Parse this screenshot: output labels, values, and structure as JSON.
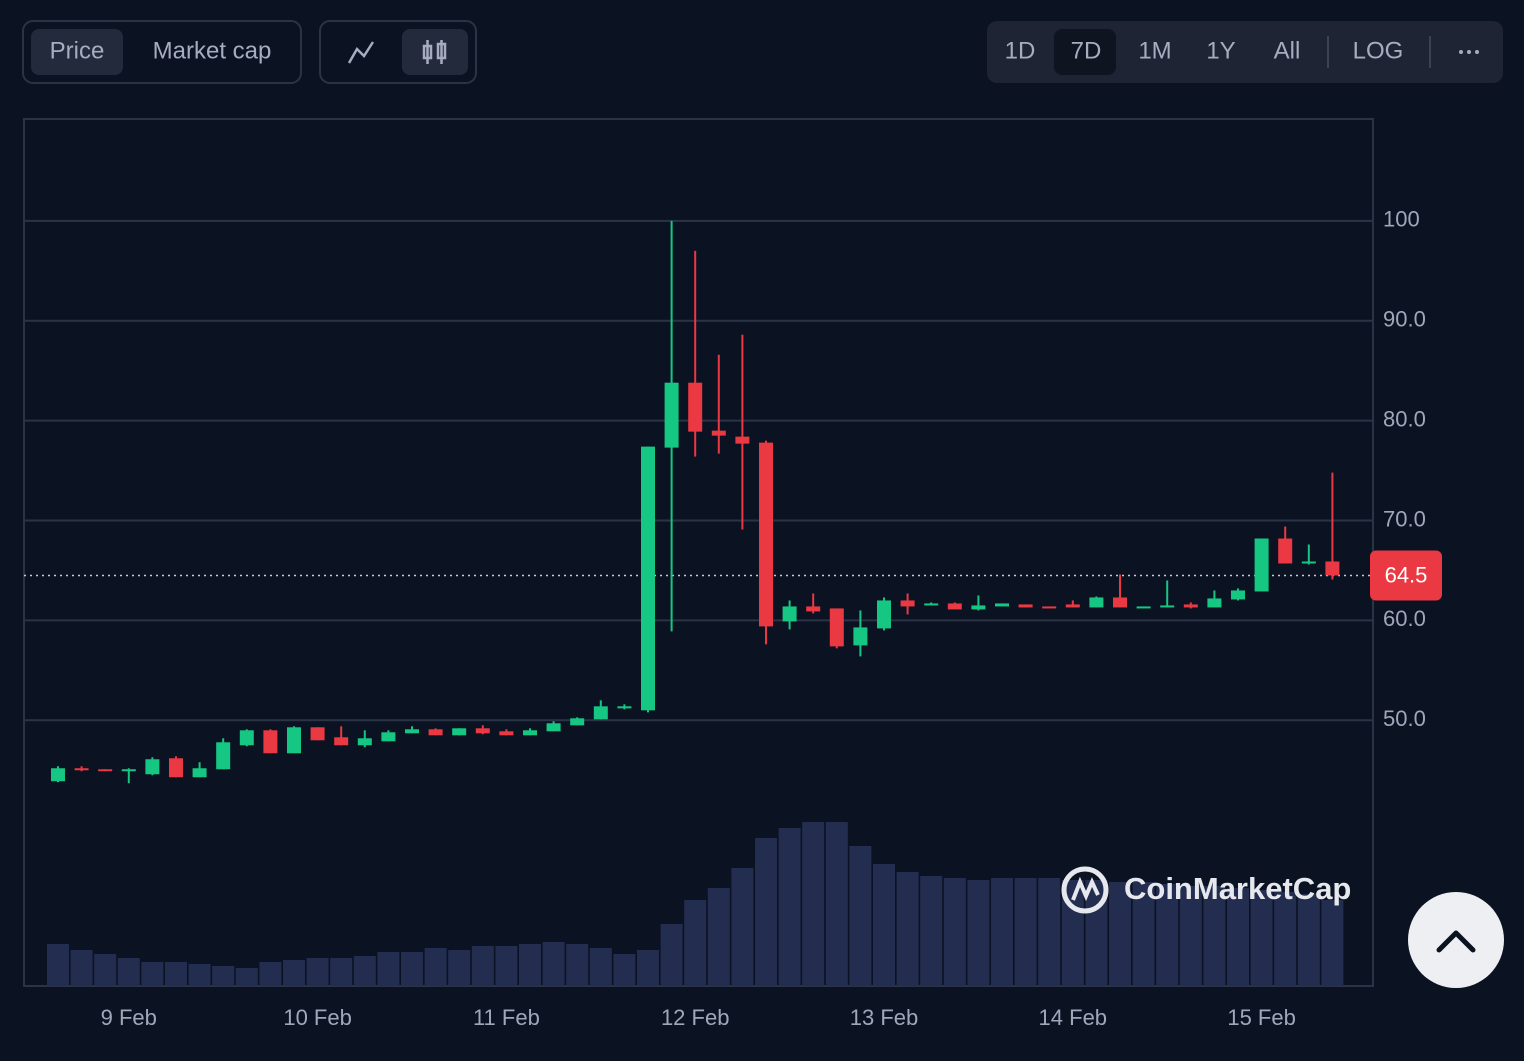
{
  "controls": {
    "metrics": [
      "Price",
      "Market cap"
    ],
    "ranges": [
      "1D",
      "7D",
      "1M",
      "1Y",
      "All"
    ],
    "log": "LOG"
  },
  "watermark": "CoinMarketCap",
  "chart_data": {
    "type": "candlestick",
    "open": [
      43.9,
      45.2,
      45.1,
      44.9,
      44.6,
      46.2,
      44.3,
      45.1,
      47.5,
      49.0,
      46.7,
      49.3,
      48.3,
      47.5,
      47.9,
      48.7,
      49.1,
      48.5,
      49.2,
      48.9,
      48.5,
      48.9,
      49.5,
      50.1,
      51.2,
      51.0,
      77.3,
      83.8,
      79.0,
      78.4,
      77.8,
      59.9,
      61.4,
      61.2,
      57.5,
      59.2,
      62.0,
      61.5,
      61.7,
      61.1,
      61.4,
      61.6,
      61.4,
      61.6,
      61.3,
      62.3,
      61.3,
      61.3,
      61.6,
      61.3,
      62.1,
      62.9,
      68.2,
      65.7,
      65.9
    ],
    "high": [
      45.4,
      45.4,
      45.1,
      45.2,
      46.3,
      46.4,
      45.8,
      48.2,
      49.1,
      49.1,
      49.4,
      49.3,
      49.4,
      49.0,
      49.0,
      49.4,
      49.2,
      49.2,
      49.5,
      49.1,
      49.2,
      49.9,
      50.3,
      52.0,
      51.6,
      77.4,
      100.0,
      97.0,
      86.6,
      88.6,
      78.0,
      62.0,
      62.7,
      61.2,
      61.0,
      62.3,
      62.7,
      61.8,
      61.8,
      62.5,
      61.7,
      61.6,
      61.4,
      62.0,
      62.4,
      64.6,
      61.4,
      64.0,
      61.8,
      63.0,
      63.2,
      68.2,
      69.4,
      67.6,
      74.8
    ],
    "low": [
      43.8,
      44.9,
      44.9,
      43.7,
      44.5,
      44.3,
      44.3,
      45.1,
      47.4,
      46.7,
      46.7,
      48.0,
      47.5,
      47.3,
      47.9,
      48.7,
      48.5,
      48.5,
      48.6,
      48.5,
      48.5,
      48.9,
      49.5,
      50.1,
      51.1,
      50.8,
      58.9,
      76.4,
      76.7,
      69.1,
      57.6,
      59.1,
      60.7,
      57.2,
      56.4,
      59.0,
      60.6,
      61.5,
      61.1,
      61.0,
      61.4,
      61.3,
      61.3,
      61.3,
      61.3,
      61.3,
      61.3,
      61.3,
      61.2,
      61.3,
      62.0,
      62.9,
      65.7,
      65.6,
      64.1
    ],
    "close": [
      45.2,
      45.0,
      44.9,
      45.1,
      46.1,
      44.3,
      45.2,
      47.8,
      49.0,
      46.7,
      49.3,
      48.0,
      47.5,
      48.2,
      48.8,
      49.1,
      48.5,
      49.2,
      48.7,
      48.5,
      49.0,
      49.7,
      50.2,
      51.4,
      51.4,
      77.4,
      83.8,
      78.9,
      78.5,
      77.7,
      59.4,
      61.4,
      60.9,
      57.4,
      59.3,
      62.0,
      61.4,
      61.7,
      61.1,
      61.5,
      61.7,
      61.3,
      61.3,
      61.3,
      62.3,
      61.3,
      61.4,
      61.5,
      61.3,
      62.2,
      63.0,
      68.2,
      65.7,
      65.9,
      64.5
    ],
    "volume": [
      42,
      36,
      32,
      28,
      24,
      24,
      22,
      20,
      18,
      24,
      26,
      28,
      28,
      30,
      34,
      34,
      38,
      36,
      40,
      40,
      42,
      44,
      42,
      38,
      32,
      36,
      62,
      86,
      98,
      118,
      148,
      158,
      164,
      164,
      140,
      122,
      114,
      110,
      108,
      106,
      108,
      108,
      108,
      106,
      106,
      104,
      104,
      102,
      100,
      100,
      98,
      96,
      94,
      92,
      86
    ],
    "up_color": "#16c784",
    "down_color": "#ea3943",
    "volume_color": "#232d4f",
    "volume_lim": [
      0,
      200
    ],
    "xlim": [
      -1.44,
      55.72
    ],
    "xticks": [
      {
        "value": 3,
        "label": "9 Feb"
      },
      {
        "value": 11,
        "label": "10 Feb"
      },
      {
        "value": 19,
        "label": "11 Feb"
      },
      {
        "value": 27,
        "label": "12 Feb"
      },
      {
        "value": 35,
        "label": "13 Feb"
      },
      {
        "value": 43,
        "label": "14 Feb"
      },
      {
        "value": 51,
        "label": "15 Feb"
      }
    ],
    "ylim": [
      23.4,
      110.2
    ],
    "yticks": [
      {
        "value": 50,
        "label": "50.0"
      },
      {
        "value": 60,
        "label": "60.0"
      },
      {
        "value": 70,
        "label": "70.0"
      },
      {
        "value": 80,
        "label": "80.0"
      },
      {
        "value": 90,
        "label": "90.0"
      },
      100
    ],
    "grid": true,
    "price_line": {
      "value": 64.5,
      "label": "64.5"
    }
  }
}
